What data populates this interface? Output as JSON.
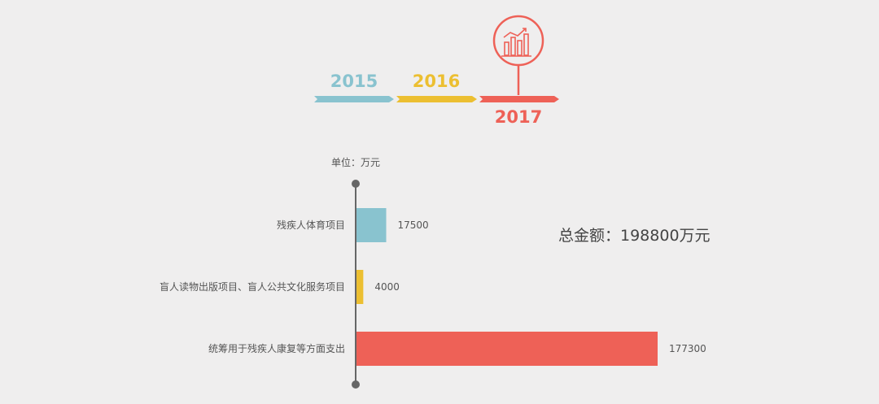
{
  "colors": {
    "background": "#efeeee",
    "blue": "#89c3cf",
    "yellow": "#ecbf31",
    "red": "#ee6157",
    "axis": "#666666",
    "text": "#555555"
  },
  "timeline": {
    "years": [
      {
        "label": "2015",
        "color": "#89c3cf"
      },
      {
        "label": "2016",
        "color": "#ecbf31"
      },
      {
        "label": "2017",
        "color": "#ee6157"
      }
    ],
    "active_icon": "bar-chart-icon"
  },
  "chart_data": {
    "type": "bar",
    "orientation": "horizontal",
    "unit_label": "单位：万元",
    "categories": [
      "残疾人体育项目",
      "盲人读物出版项目、盲人公共文化服务项目",
      "统筹用于残疾人康复等方面支出"
    ],
    "values": [
      17500,
      4000,
      177300
    ],
    "value_labels": [
      "17500",
      "4000",
      "177300"
    ],
    "colors": [
      "#89c3cf",
      "#ecbf31",
      "#ee6157"
    ],
    "xlim": [
      0,
      177300
    ],
    "grid": false,
    "legend": "none"
  },
  "total": {
    "text": "总金额：198800万元"
  }
}
